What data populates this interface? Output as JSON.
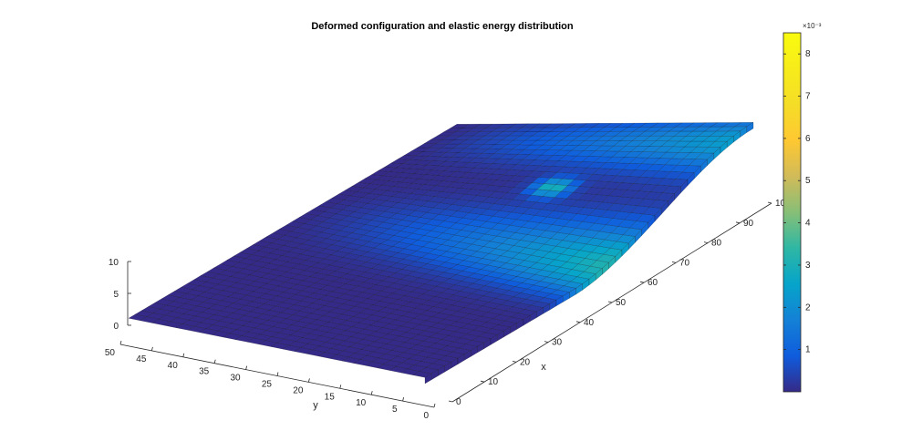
{
  "chart_data": {
    "type": "surface",
    "title": "Deformed configuration and elastic energy distribution",
    "xlabel": "x",
    "ylabel": "y",
    "zlabel": "",
    "xlim": [
      0,
      100
    ],
    "ylim": [
      0,
      50
    ],
    "zlim": [
      0,
      10
    ],
    "x_ticks": [
      0,
      10,
      20,
      30,
      40,
      50,
      60,
      70,
      80,
      90,
      100
    ],
    "y_ticks": [
      0,
      5,
      10,
      15,
      20,
      25,
      30,
      35,
      40,
      45,
      50
    ],
    "z_ticks": [
      0,
      5,
      10
    ],
    "surface": {
      "x_range": [
        0,
        100
      ],
      "y_range": [
        0,
        50
      ],
      "plate_thickness": 1,
      "profile": "bending along x: height rises from 0 near x=45 to about 10 at x=100 along the y=0 edge, flat at y=50",
      "max_deflection": 10
    },
    "colorbar": {
      "colormap": "parula",
      "range": [
        0,
        0.0085
      ],
      "ticks": [
        1,
        2,
        3,
        4,
        5,
        6,
        7,
        8
      ],
      "multiplier": "×10⁻³"
    },
    "grid": false,
    "colors": {
      "low": "#352a87",
      "high": "#f9fb0e",
      "edge": "#000000"
    }
  }
}
